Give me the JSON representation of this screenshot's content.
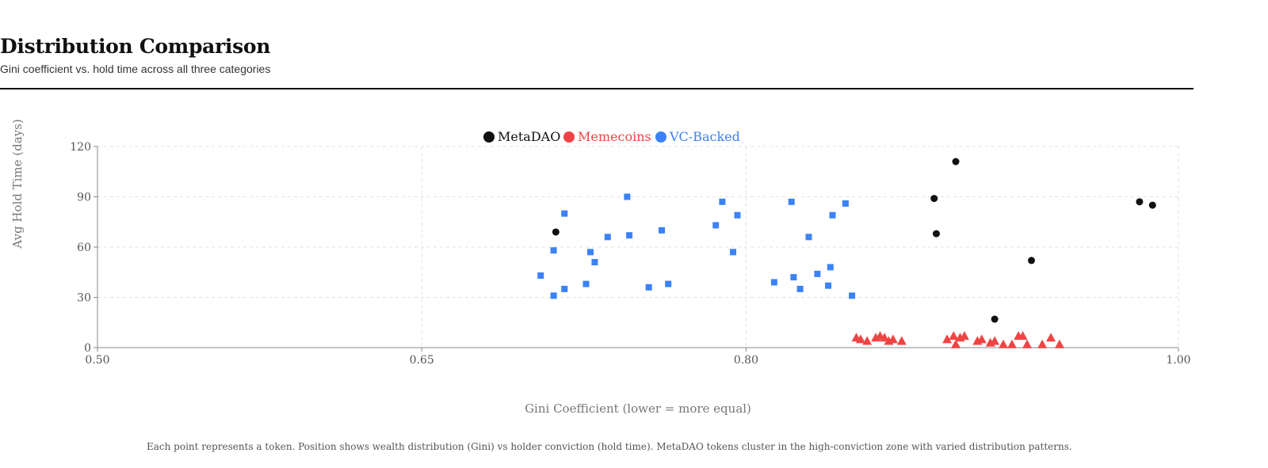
{
  "header": {
    "title": "Distribution Comparison",
    "subtitle": "Gini coefficient vs. hold time across all three categories"
  },
  "footer": {
    "note": "Each point represents a token. Position shows wealth distribution (Gini) vs holder conviction (hold time). MetaDAO tokens cluster in the high-conviction zone with varied distribution patterns."
  },
  "chart_data": {
    "type": "scatter",
    "xlabel": "Gini Coefficient (lower = more equal)",
    "ylabel": "Avg Hold Time (days)",
    "xlim": [
      0.5,
      1.0
    ],
    "ylim": [
      0,
      120
    ],
    "xticks": [
      "0.50",
      "0.65",
      "0.80",
      "1.00"
    ],
    "xtick_values": [
      0.5,
      0.65,
      0.8,
      1.0
    ],
    "yticks": [
      "0",
      "30",
      "60",
      "90",
      "120"
    ],
    "ytick_values": [
      0,
      30,
      60,
      90,
      120
    ],
    "grid": true,
    "legend_position": "top-center",
    "series": [
      {
        "name": "MetaDAO",
        "color": "#111111",
        "marker": "circle",
        "points": [
          [
            0.712,
            69
          ],
          [
            0.887,
            89
          ],
          [
            0.888,
            68
          ],
          [
            0.897,
            111
          ],
          [
            0.932,
            52
          ],
          [
            0.915,
            17
          ],
          [
            0.982,
            87
          ],
          [
            0.988,
            85
          ]
        ]
      },
      {
        "name": "Memecoins",
        "color": "#ef4444",
        "marker": "triangle",
        "points": [
          [
            0.851,
            6
          ],
          [
            0.853,
            5
          ],
          [
            0.856,
            4
          ],
          [
            0.86,
            6
          ],
          [
            0.862,
            7
          ],
          [
            0.864,
            6
          ],
          [
            0.866,
            4
          ],
          [
            0.868,
            5
          ],
          [
            0.872,
            4
          ],
          [
            0.893,
            5
          ],
          [
            0.896,
            7
          ],
          [
            0.899,
            6
          ],
          [
            0.901,
            7
          ],
          [
            0.897,
            2
          ],
          [
            0.907,
            4
          ],
          [
            0.909,
            5
          ],
          [
            0.913,
            3
          ],
          [
            0.915,
            4
          ],
          [
            0.919,
            2
          ],
          [
            0.923,
            2
          ],
          [
            0.926,
            7
          ],
          [
            0.928,
            7
          ],
          [
            0.93,
            2
          ],
          [
            0.937,
            2
          ],
          [
            0.941,
            6
          ],
          [
            0.945,
            2
          ]
        ]
      },
      {
        "name": "VC-Backed",
        "color": "#3b82f6",
        "marker": "square",
        "points": [
          [
            0.705,
            43
          ],
          [
            0.711,
            31
          ],
          [
            0.711,
            58
          ],
          [
            0.716,
            35
          ],
          [
            0.716,
            80
          ],
          [
            0.726,
            38
          ],
          [
            0.728,
            57
          ],
          [
            0.73,
            51
          ],
          [
            0.736,
            66
          ],
          [
            0.745,
            90
          ],
          [
            0.746,
            67
          ],
          [
            0.755,
            36
          ],
          [
            0.761,
            70
          ],
          [
            0.764,
            38
          ],
          [
            0.786,
            73
          ],
          [
            0.789,
            87
          ],
          [
            0.794,
            57
          ],
          [
            0.796,
            79
          ],
          [
            0.813,
            39
          ],
          [
            0.821,
            87
          ],
          [
            0.822,
            42
          ],
          [
            0.825,
            35
          ],
          [
            0.829,
            66
          ],
          [
            0.833,
            44
          ],
          [
            0.838,
            37
          ],
          [
            0.839,
            48
          ],
          [
            0.84,
            79
          ],
          [
            0.846,
            86
          ],
          [
            0.849,
            31
          ]
        ]
      }
    ]
  }
}
